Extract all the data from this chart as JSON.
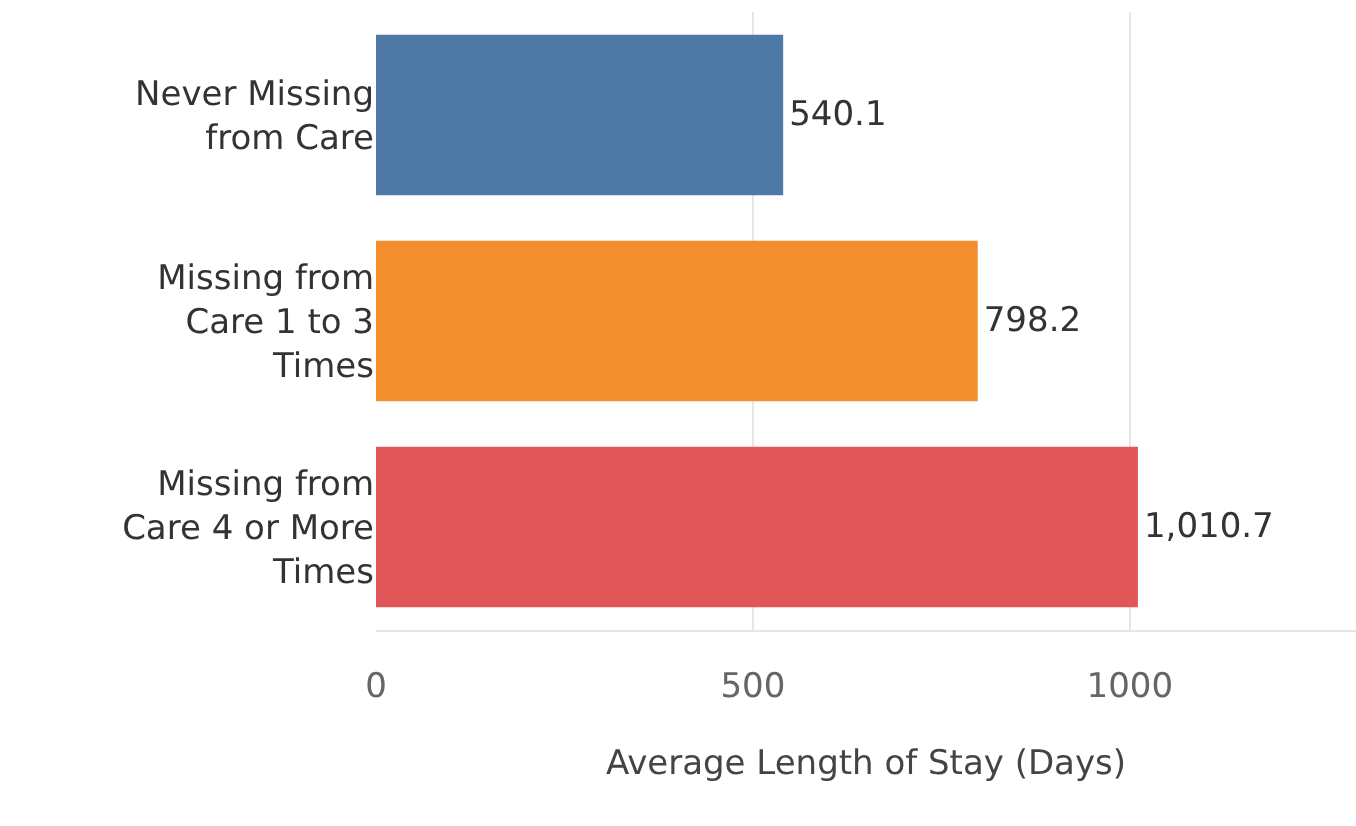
{
  "chart_data": {
    "type": "bar",
    "orientation": "horizontal",
    "categories": [
      "Never Missing from Care",
      "Missing from Care 1 to 3 Times",
      "Missing from Care 4 or More Times"
    ],
    "values": [
      540.1,
      798.2,
      1010.7
    ],
    "colors": [
      "#4e79a7",
      "#f28e2b",
      "#e15759"
    ],
    "value_labels": [
      "540.1",
      "798.2",
      "1,010.7"
    ],
    "xlabel": "Average Length of Stay (Days)",
    "xlim": [
      0,
      1300
    ],
    "xticks": [
      0,
      500,
      1000
    ],
    "grid": "x"
  }
}
